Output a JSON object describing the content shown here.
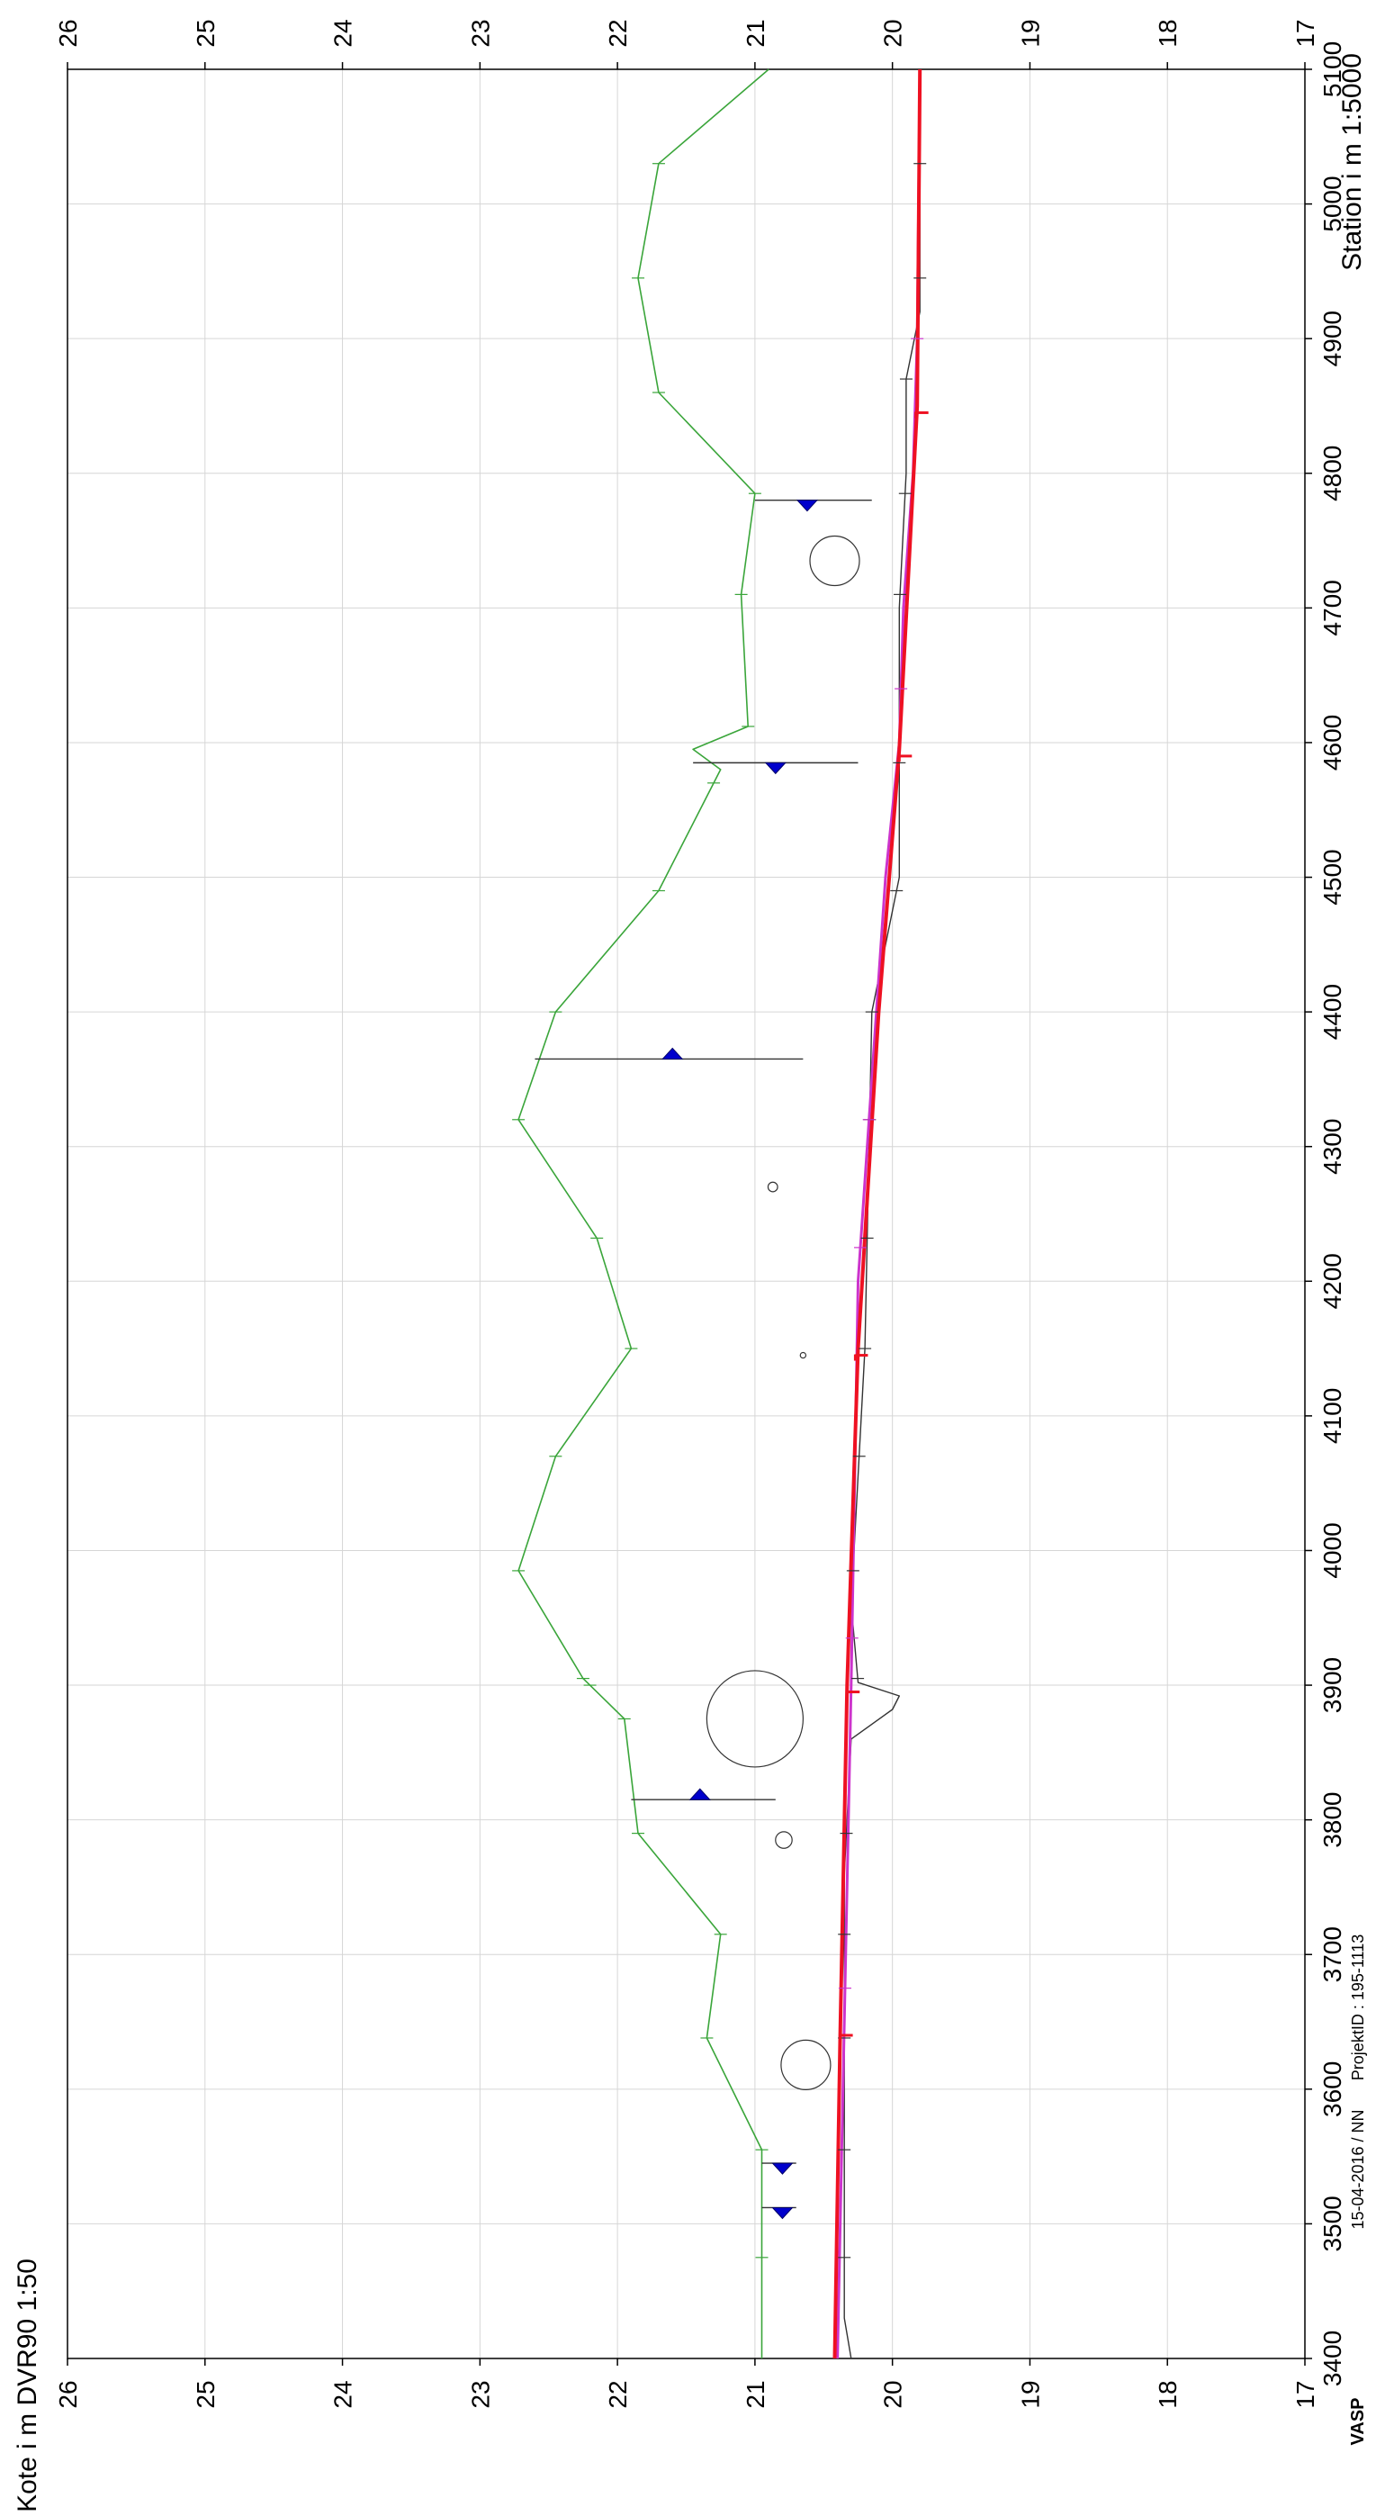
{
  "chart_data": {
    "type": "line",
    "orientation": "rotated-90-clockwise",
    "xlabel": "Station i m 1:5000",
    "ylabel": "Kote i m DVR90 1:50",
    "xlim": [
      3400,
      5100
    ],
    "ylim": [
      17,
      26
    ],
    "x_ticks": [
      3400,
      3500,
      3600,
      3700,
      3800,
      3900,
      4000,
      4100,
      4200,
      4300,
      4400,
      4500,
      4600,
      4700,
      4800,
      4900,
      5000,
      5100
    ],
    "y_ticks": [
      17,
      18,
      19,
      20,
      21,
      22,
      23,
      24,
      25,
      26
    ],
    "grid": true,
    "series": [
      {
        "color": "#3aa53a",
        "points": [
          [
            3400,
            20.95
          ],
          [
            3555,
            20.95
          ],
          [
            3638,
            21.35
          ],
          [
            3715,
            21.25
          ],
          [
            3790,
            21.85
          ],
          [
            3875,
            21.95
          ],
          [
            3905,
            22.25
          ],
          [
            3985,
            22.72
          ],
          [
            4070,
            22.45
          ],
          [
            4150,
            21.9
          ],
          [
            4232,
            22.15
          ],
          [
            4320,
            22.72
          ],
          [
            4400,
            22.45
          ],
          [
            4490,
            21.7
          ],
          [
            4580,
            21.25
          ],
          [
            4595,
            21.45
          ],
          [
            4612,
            21.05
          ],
          [
            4710,
            21.1
          ],
          [
            4785,
            21.0
          ],
          [
            4860,
            21.7
          ],
          [
            4945,
            21.85
          ],
          [
            5030,
            21.7
          ],
          [
            5100,
            20.9
          ]
        ]
      },
      {
        "color": "#333333",
        "points": [
          [
            3400,
            20.3
          ],
          [
            3430,
            20.35
          ],
          [
            3760,
            20.35
          ],
          [
            3860,
            20.3
          ],
          [
            3882,
            20.0
          ],
          [
            3892,
            19.95
          ],
          [
            3902,
            20.25
          ],
          [
            3960,
            20.3
          ],
          [
            4150,
            20.2
          ],
          [
            4400,
            20.15
          ],
          [
            4500,
            19.95
          ],
          [
            4600,
            19.95
          ],
          [
            4700,
            19.95
          ],
          [
            4800,
            19.9
          ],
          [
            4870,
            19.9
          ],
          [
            4920,
            19.8
          ],
          [
            5100,
            19.8
          ]
        ]
      },
      {
        "color": "#cc33cc",
        "points": [
          [
            3400,
            20.4
          ],
          [
            3900,
            20.3
          ],
          [
            4200,
            20.25
          ],
          [
            4500,
            20.05
          ],
          [
            4600,
            19.95
          ],
          [
            4700,
            19.92
          ],
          [
            4800,
            19.85
          ],
          [
            4900,
            19.82
          ],
          [
            5100,
            19.8
          ]
        ]
      },
      {
        "color": "#ee1122",
        "points": [
          [
            3400,
            20.42
          ],
          [
            3640,
            20.38
          ],
          [
            3900,
            20.33
          ],
          [
            4150,
            20.25
          ],
          [
            4400,
            20.1
          ],
          [
            4595,
            19.95
          ],
          [
            4850,
            19.82
          ],
          [
            5100,
            19.8
          ]
        ]
      }
    ],
    "green_ticks": [
      3475,
      3555,
      3638,
      3715,
      3790,
      3875,
      3900,
      3905,
      3985,
      4070,
      4150,
      4232,
      4320,
      4400,
      4490,
      4570,
      4612,
      4710,
      4785,
      4860,
      4945,
      5030
    ],
    "grey_ticks": [
      3475,
      3555,
      3638,
      3715,
      3790,
      3905,
      3985,
      4070,
      4150,
      4232,
      4320,
      4400,
      4490,
      4585,
      4710,
      4785,
      4870,
      4945,
      5030
    ],
    "magenta_ticks": [
      3675,
      3935,
      4225,
      4320,
      4640,
      4900
    ],
    "red_markers": [
      [
        3640,
        20.38
      ],
      [
        3895,
        20.33
      ],
      [
        4145,
        20.27
      ],
      [
        4590,
        19.95
      ],
      [
        4845,
        19.83
      ]
    ],
    "structures": [
      {
        "x": 3512,
        "top": 20.95,
        "bottom": 20.7,
        "marker": 20.8,
        "dir": "down"
      },
      {
        "x": 3545,
        "top": 20.95,
        "bottom": 20.7,
        "marker": 20.8,
        "dir": "down"
      },
      {
        "x": 3815,
        "top": 21.9,
        "bottom": 20.85,
        "marker": 21.4,
        "dir": "up"
      },
      {
        "x": 4365,
        "top": 22.6,
        "bottom": 20.65,
        "marker": 21.6,
        "dir": "up"
      },
      {
        "x": 4585,
        "top": 21.45,
        "bottom": 20.25,
        "marker": 20.85,
        "dir": "down"
      },
      {
        "x": 4780,
        "top": 21.0,
        "bottom": 20.15,
        "marker": 20.62,
        "dir": "down"
      }
    ],
    "circles": [
      {
        "x": 3618,
        "y": 20.63,
        "r": 0.18
      },
      {
        "x": 3785,
        "y": 20.79,
        "r": 0.06
      },
      {
        "x": 3875,
        "y": 21.0,
        "r": 0.35
      },
      {
        "x": 4145,
        "y": 20.65,
        "r": 0.02
      },
      {
        "x": 4270,
        "y": 20.87,
        "r": 0.035
      },
      {
        "x": 4735,
        "y": 20.42,
        "r": 0.18
      }
    ]
  },
  "footer": {
    "date_user": "15-04-2016 / NN",
    "project": "ProjektID : 195-1113",
    "brand": "VASP"
  }
}
